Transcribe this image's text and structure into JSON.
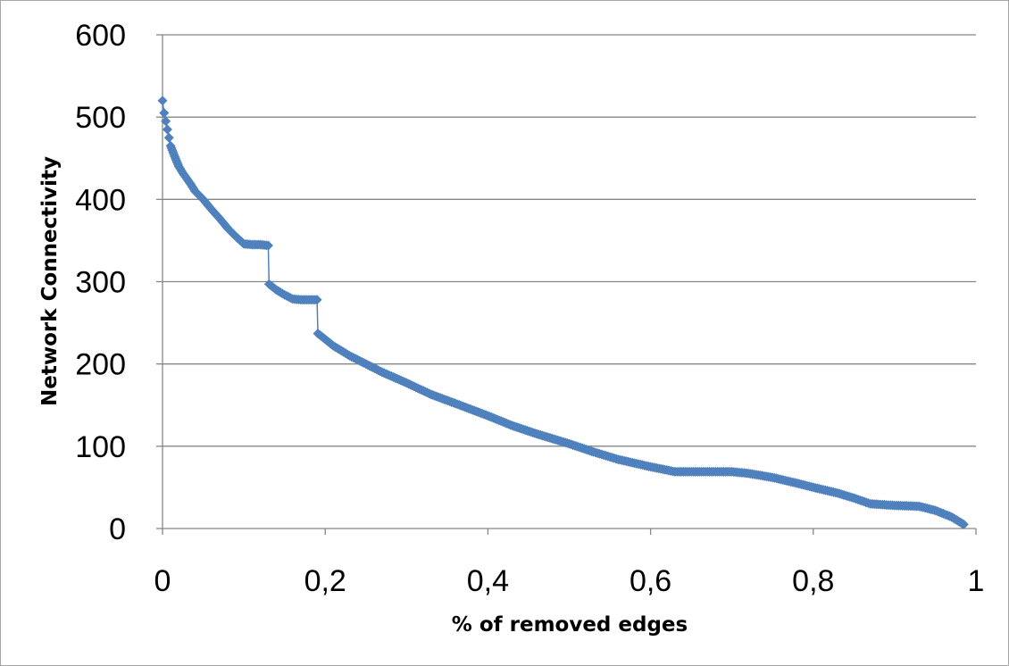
{
  "chart_data": {
    "type": "line",
    "title": "",
    "xlabel": "% of removed edges",
    "ylabel": "Network Connectivity",
    "xlim": [
      0,
      1
    ],
    "ylim": [
      0,
      600
    ],
    "x_ticks": [
      0,
      0.2,
      0.4,
      0.6,
      0.8,
      1
    ],
    "x_tick_labels": [
      "0",
      "0,2",
      "0,4",
      "0,6",
      "0,8",
      "1"
    ],
    "y_ticks": [
      0,
      100,
      200,
      300,
      400,
      500,
      600
    ],
    "y_tick_labels": [
      "0",
      "100",
      "200",
      "300",
      "400",
      "500",
      "600"
    ],
    "grid": {
      "horizontal": true,
      "vertical": false
    },
    "legend": "none",
    "series": [
      {
        "color": "#4f81bd",
        "marker": "diamond",
        "points": [
          [
            0,
            520
          ],
          [
            0.002,
            505
          ],
          [
            0.004,
            495
          ],
          [
            0.006,
            485
          ],
          [
            0.008,
            475
          ],
          [
            0.01,
            465
          ],
          [
            0.015,
            452
          ],
          [
            0.02,
            440
          ],
          [
            0.025,
            432
          ],
          [
            0.03,
            425
          ],
          [
            0.035,
            418
          ],
          [
            0.04,
            410
          ],
          [
            0.05,
            400
          ],
          [
            0.06,
            388
          ],
          [
            0.07,
            377
          ],
          [
            0.08,
            365
          ],
          [
            0.09,
            355
          ],
          [
            0.1,
            346
          ],
          [
            0.11,
            345
          ],
          [
            0.12,
            345
          ],
          [
            0.13,
            344
          ],
          [
            0.131,
            297
          ],
          [
            0.14,
            290
          ],
          [
            0.15,
            284
          ],
          [
            0.16,
            279
          ],
          [
            0.17,
            278
          ],
          [
            0.18,
            278
          ],
          [
            0.19,
            278
          ],
          [
            0.191,
            237
          ],
          [
            0.2,
            230
          ],
          [
            0.21,
            222
          ],
          [
            0.22,
            216
          ],
          [
            0.23,
            210
          ],
          [
            0.24,
            205
          ],
          [
            0.25,
            200
          ],
          [
            0.27,
            190
          ],
          [
            0.3,
            177
          ],
          [
            0.33,
            163
          ],
          [
            0.36,
            152
          ],
          [
            0.4,
            137
          ],
          [
            0.43,
            125
          ],
          [
            0.46,
            115
          ],
          [
            0.5,
            103
          ],
          [
            0.53,
            93
          ],
          [
            0.56,
            84
          ],
          [
            0.6,
            75
          ],
          [
            0.63,
            69
          ],
          [
            0.66,
            69
          ],
          [
            0.7,
            69
          ],
          [
            0.72,
            67
          ],
          [
            0.75,
            62
          ],
          [
            0.78,
            55
          ],
          [
            0.8,
            50
          ],
          [
            0.83,
            43
          ],
          [
            0.85,
            37
          ],
          [
            0.87,
            30
          ],
          [
            0.9,
            28
          ],
          [
            0.93,
            27
          ],
          [
            0.95,
            22
          ],
          [
            0.97,
            14
          ],
          [
            0.985,
            5
          ]
        ]
      }
    ]
  }
}
